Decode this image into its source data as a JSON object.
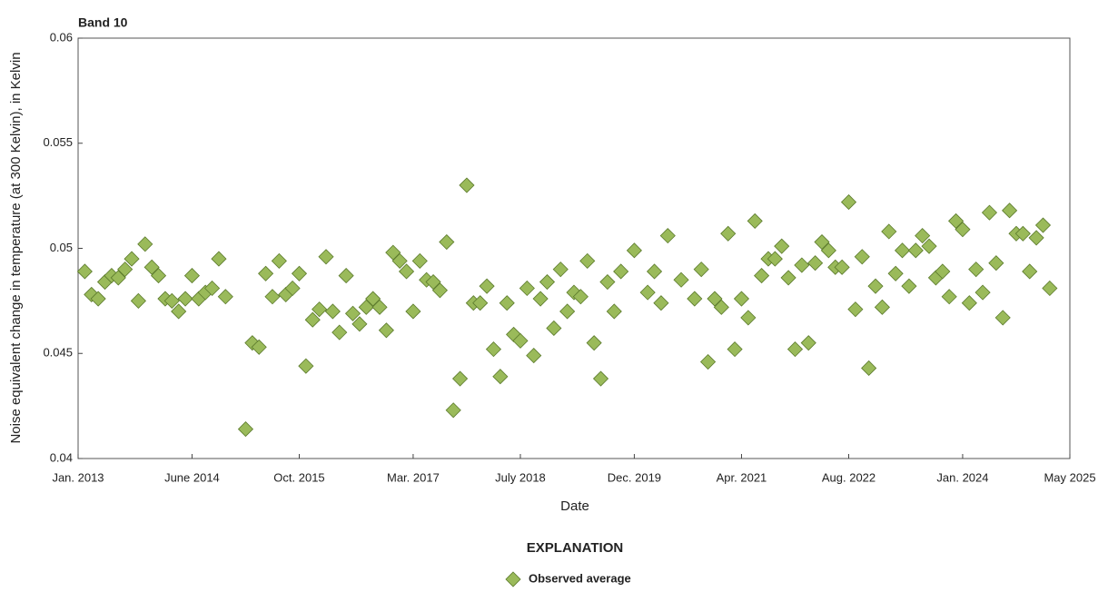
{
  "chart_data": {
    "type": "scatter",
    "title": "Band 10",
    "x_label": "Date",
    "y_label": "Noise equivalent change in temperature (at 300 Kelvin), in Kelvin",
    "legend_title": "EXPLANATION",
    "series": [
      {
        "name": "Observed average",
        "color": "#9aba5a",
        "x": [
          "2013-02",
          "2013-03",
          "2013-04",
          "2013-05",
          "2013-06",
          "2013-07",
          "2013-08",
          "2013-09",
          "2013-10",
          "2013-11",
          "2013-12",
          "2014-01",
          "2014-02",
          "2014-03",
          "2014-04",
          "2014-05",
          "2014-06",
          "2014-07",
          "2014-08",
          "2014-09",
          "2014-10",
          "2014-11",
          "2015-02",
          "2015-03",
          "2015-04",
          "2015-05",
          "2015-06",
          "2015-07",
          "2015-08",
          "2015-09",
          "2015-10",
          "2015-11",
          "2015-12",
          "2016-01",
          "2016-02",
          "2016-03",
          "2016-04",
          "2016-05",
          "2016-06",
          "2016-07",
          "2016-08",
          "2016-09",
          "2016-10",
          "2016-11",
          "2016-12",
          "2017-01",
          "2017-02",
          "2017-03",
          "2017-04",
          "2017-05",
          "2017-06",
          "2017-07",
          "2017-08",
          "2017-09",
          "2017-10",
          "2017-11",
          "2017-12",
          "2018-01",
          "2018-02",
          "2018-03",
          "2018-04",
          "2018-05",
          "2018-06",
          "2018-07",
          "2018-08",
          "2018-09",
          "2018-10",
          "2018-11",
          "2018-12",
          "2019-01",
          "2019-02",
          "2019-03",
          "2019-04",
          "2019-05",
          "2019-06",
          "2019-07",
          "2019-08",
          "2019-09",
          "2019-10",
          "2019-12",
          "2020-02",
          "2020-03",
          "2020-04",
          "2020-05",
          "2020-07",
          "2020-09",
          "2020-10",
          "2020-11",
          "2020-12",
          "2021-01",
          "2021-02",
          "2021-03",
          "2021-04",
          "2021-05",
          "2021-06",
          "2021-07",
          "2021-08",
          "2021-09",
          "2021-10",
          "2021-11",
          "2021-12",
          "2022-01",
          "2022-02",
          "2022-03",
          "2022-04",
          "2022-05",
          "2022-06",
          "2022-07",
          "2022-08",
          "2022-09",
          "2022-10",
          "2022-11",
          "2022-12",
          "2023-01",
          "2023-02",
          "2023-03",
          "2023-04",
          "2023-05",
          "2023-06",
          "2023-07",
          "2023-08",
          "2023-09",
          "2023-10",
          "2023-11",
          "2023-12",
          "2024-01",
          "2024-02",
          "2024-03",
          "2024-04",
          "2024-05",
          "2024-06",
          "2024-07",
          "2024-08",
          "2024-09",
          "2024-10",
          "2024-11",
          "2024-12",
          "2025-01",
          "2025-02"
        ],
        "values": [
          0.0489,
          0.0478,
          0.0476,
          0.0484,
          0.0487,
          0.0486,
          0.049,
          0.0495,
          0.0475,
          0.0502,
          0.0491,
          0.0487,
          0.0476,
          0.0475,
          0.047,
          0.0476,
          0.0487,
          0.0476,
          0.0479,
          0.0481,
          0.0495,
          0.0477,
          0.0414,
          0.0455,
          0.0453,
          0.0488,
          0.0477,
          0.0494,
          0.0478,
          0.0481,
          0.0488,
          0.0444,
          0.0466,
          0.0471,
          0.0496,
          0.047,
          0.046,
          0.0487,
          0.0469,
          0.0464,
          0.0472,
          0.0476,
          0.0472,
          0.0461,
          0.0498,
          0.0494,
          0.0489,
          0.047,
          0.0494,
          0.0485,
          0.0484,
          0.048,
          0.0503,
          0.0423,
          0.0438,
          0.053,
          0.0474,
          0.0474,
          0.0482,
          0.0452,
          0.0439,
          0.0474,
          0.0459,
          0.0456,
          0.0481,
          0.0449,
          0.0476,
          0.0484,
          0.0462,
          0.049,
          0.047,
          0.0479,
          0.0477,
          0.0494,
          0.0455,
          0.0438,
          0.0484,
          0.047,
          0.0489,
          0.0499,
          0.0479,
          0.0489,
          0.0474,
          0.0506,
          0.0485,
          0.0476,
          0.049,
          0.0446,
          0.0476,
          0.0472,
          0.0507,
          0.0452,
          0.0476,
          0.0467,
          0.0513,
          0.0487,
          0.0495,
          0.0495,
          0.0501,
          0.0486,
          0.0452,
          0.0492,
          0.0455,
          0.0493,
          0.0503,
          0.0499,
          0.0491,
          0.0491,
          0.0522,
          0.0471,
          0.0496,
          0.0443,
          0.0482,
          0.0472,
          0.0508,
          0.0488,
          0.0499,
          0.0482,
          0.0499,
          0.0506,
          0.0501,
          0.0486,
          0.0489,
          0.0477,
          0.0513,
          0.0509,
          0.0474,
          0.049,
          0.0479,
          0.0517,
          0.0493,
          0.0467,
          0.0518,
          0.0507,
          0.0507,
          0.0489,
          0.0505,
          0.0511,
          0.0481
        ]
      }
    ],
    "xlim": [
      "2013-01",
      "2025-05"
    ],
    "xticks": [
      {
        "value": "2013-01",
        "label": "Jan. 2013"
      },
      {
        "value": "2014-06",
        "label": "June 2014"
      },
      {
        "value": "2015-10",
        "label": "Oct. 2015"
      },
      {
        "value": "2017-03",
        "label": "Mar. 2017"
      },
      {
        "value": "2018-07",
        "label": "July 2018"
      },
      {
        "value": "2019-12",
        "label": "Dec. 2019"
      },
      {
        "value": "2021-04",
        "label": "Apr. 2021"
      },
      {
        "value": "2022-08",
        "label": "Aug. 2022"
      },
      {
        "value": "2024-01",
        "label": "Jan. 2024"
      },
      {
        "value": "2025-05",
        "label": "May 2025"
      }
    ],
    "ylim": [
      0.04,
      0.06
    ],
    "yticks": [
      0.04,
      0.045,
      0.05,
      0.055,
      0.06
    ],
    "grid": false
  }
}
